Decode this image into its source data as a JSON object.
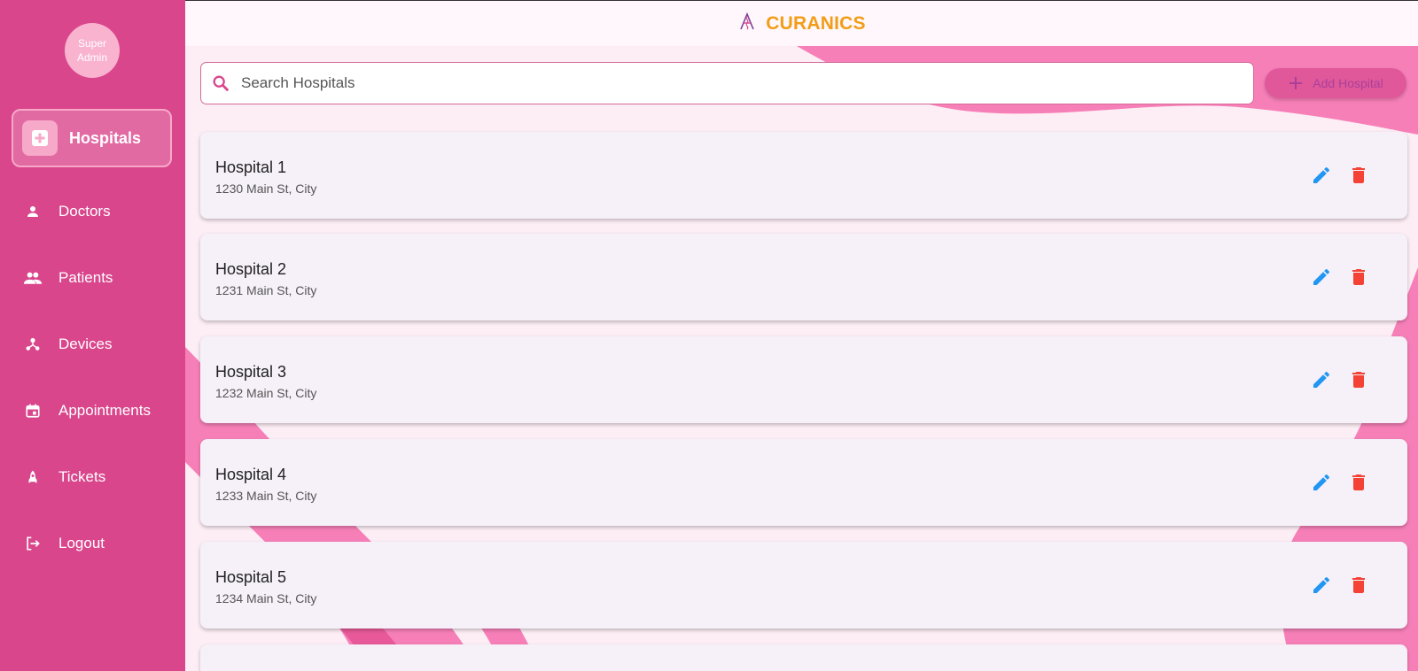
{
  "colors": {
    "sidebar": "#d9468c",
    "brand": "#f29d18",
    "edit": "#2196f3",
    "delete": "#f44336",
    "background_wave": "#f77fb8"
  },
  "avatar": {
    "line1": "Super",
    "line2": "Admin"
  },
  "brand": {
    "name": "CURANICS",
    "logo_icon": "caduceus-a-logo"
  },
  "sidebar": {
    "active": {
      "label": "Hospitals",
      "icon": "hospital-plus-icon"
    },
    "items": [
      {
        "label": "Doctors",
        "icon": "person-icon"
      },
      {
        "label": "Patients",
        "icon": "people-icon"
      },
      {
        "label": "Devices",
        "icon": "device-hub-icon"
      },
      {
        "label": "Appointments",
        "icon": "calendar-icon"
      },
      {
        "label": "Tickets",
        "icon": "rocket-icon"
      },
      {
        "label": "Logout",
        "icon": "logout-icon"
      }
    ]
  },
  "search": {
    "placeholder": "Search Hospitals",
    "value": ""
  },
  "add_button": {
    "label": "Add Hospital",
    "icon": "plus-icon"
  },
  "hospitals": [
    {
      "name": "Hospital 1",
      "address": "1230 Main St, City"
    },
    {
      "name": "Hospital 2",
      "address": "1231 Main St, City"
    },
    {
      "name": "Hospital 3",
      "address": "1232 Main St, City"
    },
    {
      "name": "Hospital 4",
      "address": "1233 Main St, City"
    },
    {
      "name": "Hospital 5",
      "address": "1234 Main St, City"
    }
  ]
}
